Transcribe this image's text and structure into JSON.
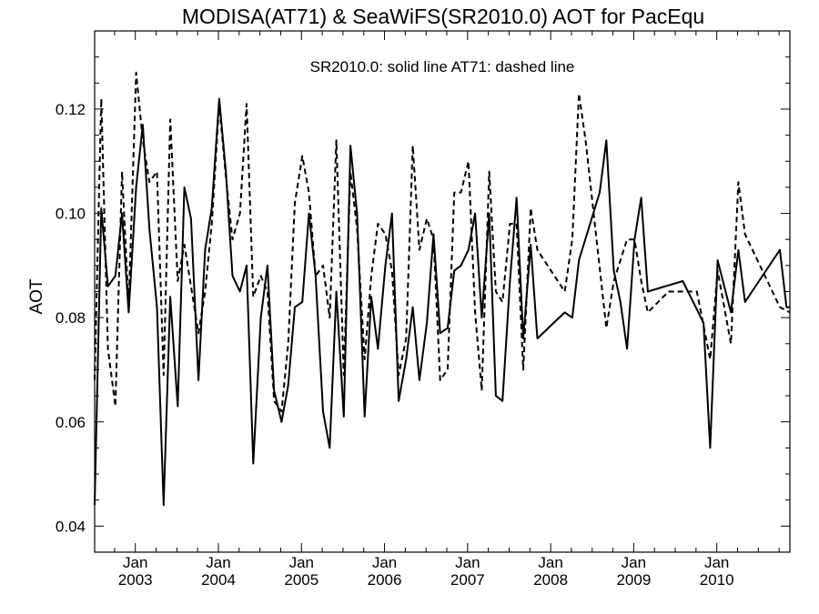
{
  "chart_data": {
    "type": "line",
    "title": "MODISA(AT71) & SeaWiFS(SR2010.0)  AOT for PacEqu",
    "annotation": "SR2010.0: solid line   AT71: dashed line",
    "xlabel": "",
    "ylabel": "AOT",
    "xlim": [
      2002.51,
      2010.88
    ],
    "ylim": [
      0.035,
      0.135
    ],
    "yticks": [
      0.04,
      0.06,
      0.08,
      0.1,
      0.12
    ],
    "ytick_labels": [
      "0.04",
      "0.06",
      "0.08",
      "0.10",
      "0.12"
    ],
    "xticks": [
      {
        "year": 2003,
        "top": "Jan",
        "bottom": "2003"
      },
      {
        "year": 2004,
        "top": "Jan",
        "bottom": "2004"
      },
      {
        "year": 2005,
        "top": "Jan",
        "bottom": "2005"
      },
      {
        "year": 2006,
        "top": "Jan",
        "bottom": "2006"
      },
      {
        "year": 2007,
        "top": "Jan",
        "bottom": "2007"
      },
      {
        "year": 2008,
        "top": "Jan",
        "bottom": "2008"
      },
      {
        "year": 2009,
        "top": "Jan",
        "bottom": "2009"
      },
      {
        "year": 2010,
        "top": "Jan",
        "bottom": "2010"
      }
    ],
    "grid": false,
    "series": [
      {
        "name": "SR2010.0",
        "style": "solid",
        "color": "#000000",
        "points": [
          [
            2002.51,
            0.044
          ],
          [
            2002.59,
            0.101
          ],
          [
            2002.67,
            0.086
          ],
          [
            2002.76,
            0.088
          ],
          [
            2002.84,
            0.1
          ],
          [
            2002.92,
            0.081
          ],
          [
            2003.01,
            0.105
          ],
          [
            2003.09,
            0.117
          ],
          [
            2003.17,
            0.097
          ],
          [
            2003.26,
            0.082
          ],
          [
            2003.34,
            0.044
          ],
          [
            2003.42,
            0.084
          ],
          [
            2003.51,
            0.063
          ],
          [
            2003.59,
            0.105
          ],
          [
            2003.67,
            0.099
          ],
          [
            2003.76,
            0.068
          ],
          [
            2003.84,
            0.093
          ],
          [
            2003.92,
            0.101
          ],
          [
            2004.01,
            0.122
          ],
          [
            2004.09,
            0.108
          ],
          [
            2004.17,
            0.088
          ],
          [
            2004.26,
            0.085
          ],
          [
            2004.34,
            0.09
          ],
          [
            2004.42,
            0.052
          ],
          [
            2004.51,
            0.08
          ],
          [
            2004.59,
            0.09
          ],
          [
            2004.67,
            0.066
          ],
          [
            2004.76,
            0.06
          ],
          [
            2004.84,
            0.067
          ],
          [
            2004.92,
            0.082
          ],
          [
            2005.01,
            0.083
          ],
          [
            2005.09,
            0.1
          ],
          [
            2005.17,
            0.088
          ],
          [
            2005.26,
            0.062
          ],
          [
            2005.34,
            0.055
          ],
          [
            2005.42,
            0.085
          ],
          [
            2005.51,
            0.061
          ],
          [
            2005.59,
            0.113
          ],
          [
            2005.67,
            0.1
          ],
          [
            2005.76,
            0.061
          ],
          [
            2005.84,
            0.084
          ],
          [
            2005.92,
            0.074
          ],
          [
            2006.01,
            0.09
          ],
          [
            2006.09,
            0.1
          ],
          [
            2006.17,
            0.064
          ],
          [
            2006.26,
            0.072
          ],
          [
            2006.34,
            0.082
          ],
          [
            2006.42,
            0.068
          ],
          [
            2006.51,
            0.079
          ],
          [
            2006.59,
            0.096
          ],
          [
            2006.67,
            0.077
          ],
          [
            2006.76,
            0.078
          ],
          [
            2006.84,
            0.089
          ],
          [
            2006.92,
            0.09
          ],
          [
            2007.01,
            0.093
          ],
          [
            2007.09,
            0.1
          ],
          [
            2007.17,
            0.08
          ],
          [
            2007.26,
            0.1
          ],
          [
            2007.34,
            0.065
          ],
          [
            2007.42,
            0.064
          ],
          [
            2007.51,
            0.087
          ],
          [
            2007.59,
            0.103
          ],
          [
            2007.67,
            0.076
          ],
          [
            2007.76,
            0.094
          ],
          [
            2007.84,
            0.076
          ],
          [
            2008.17,
            0.081
          ],
          [
            2008.26,
            0.08
          ],
          [
            2008.34,
            0.091
          ],
          [
            2008.59,
            0.104
          ],
          [
            2008.67,
            0.114
          ],
          [
            2008.76,
            0.089
          ],
          [
            2008.84,
            0.083
          ],
          [
            2008.92,
            0.074
          ],
          [
            2009.01,
            0.095
          ],
          [
            2009.09,
            0.103
          ],
          [
            2009.17,
            0.085
          ],
          [
            2009.59,
            0.087
          ],
          [
            2009.84,
            0.079
          ],
          [
            2009.92,
            0.055
          ],
          [
            2010.01,
            0.091
          ],
          [
            2010.17,
            0.081
          ],
          [
            2010.26,
            0.093
          ],
          [
            2010.34,
            0.083
          ],
          [
            2010.76,
            0.093
          ],
          [
            2010.84,
            0.082
          ],
          [
            2010.88,
            0.082
          ]
        ]
      },
      {
        "name": "AT71",
        "style": "dashed",
        "color": "#000000",
        "points": [
          [
            2002.51,
            0.068
          ],
          [
            2002.59,
            0.122
          ],
          [
            2002.67,
            0.074
          ],
          [
            2002.76,
            0.063
          ],
          [
            2002.84,
            0.108
          ],
          [
            2002.92,
            0.082
          ],
          [
            2003.01,
            0.127
          ],
          [
            2003.09,
            0.114
          ],
          [
            2003.17,
            0.106
          ],
          [
            2003.26,
            0.108
          ],
          [
            2003.34,
            0.069
          ],
          [
            2003.42,
            0.118
          ],
          [
            2003.51,
            0.087
          ],
          [
            2003.59,
            0.094
          ],
          [
            2003.67,
            0.086
          ],
          [
            2003.76,
            0.077
          ],
          [
            2003.84,
            0.085
          ],
          [
            2003.92,
            0.098
          ],
          [
            2004.01,
            0.121
          ],
          [
            2004.09,
            0.107
          ],
          [
            2004.17,
            0.095
          ],
          [
            2004.26,
            0.1
          ],
          [
            2004.34,
            0.121
          ],
          [
            2004.42,
            0.084
          ],
          [
            2004.51,
            0.088
          ],
          [
            2004.59,
            0.085
          ],
          [
            2004.67,
            0.064
          ],
          [
            2004.76,
            0.062
          ],
          [
            2004.84,
            0.075
          ],
          [
            2004.92,
            0.102
          ],
          [
            2005.01,
            0.111
          ],
          [
            2005.09,
            0.104
          ],
          [
            2005.17,
            0.088
          ],
          [
            2005.26,
            0.09
          ],
          [
            2005.34,
            0.08
          ],
          [
            2005.42,
            0.114
          ],
          [
            2005.51,
            0.069
          ],
          [
            2005.59,
            0.108
          ],
          [
            2005.67,
            0.097
          ],
          [
            2005.76,
            0.072
          ],
          [
            2005.84,
            0.088
          ],
          [
            2005.92,
            0.098
          ],
          [
            2006.01,
            0.096
          ],
          [
            2006.09,
            0.089
          ],
          [
            2006.17,
            0.069
          ],
          [
            2006.26,
            0.076
          ],
          [
            2006.34,
            0.113
          ],
          [
            2006.42,
            0.093
          ],
          [
            2006.51,
            0.099
          ],
          [
            2006.59,
            0.095
          ],
          [
            2006.67,
            0.068
          ],
          [
            2006.76,
            0.07
          ],
          [
            2006.84,
            0.104
          ],
          [
            2006.92,
            0.104
          ],
          [
            2007.01,
            0.11
          ],
          [
            2007.09,
            0.081
          ],
          [
            2007.17,
            0.066
          ],
          [
            2007.26,
            0.108
          ],
          [
            2007.34,
            0.085
          ],
          [
            2007.42,
            0.083
          ],
          [
            2007.51,
            0.098
          ],
          [
            2007.59,
            0.098
          ],
          [
            2007.67,
            0.07
          ],
          [
            2007.76,
            0.101
          ],
          [
            2007.84,
            0.093
          ],
          [
            2008.17,
            0.085
          ],
          [
            2008.26,
            0.095
          ],
          [
            2008.34,
            0.123
          ],
          [
            2008.42,
            0.114
          ],
          [
            2008.67,
            0.078
          ],
          [
            2008.76,
            0.087
          ],
          [
            2008.92,
            0.095
          ],
          [
            2009.01,
            0.095
          ],
          [
            2009.09,
            0.087
          ],
          [
            2009.17,
            0.081
          ],
          [
            2009.42,
            0.085
          ],
          [
            2009.67,
            0.085
          ],
          [
            2009.76,
            0.085
          ],
          [
            2009.92,
            0.072
          ],
          [
            2010.01,
            0.089
          ],
          [
            2010.17,
            0.075
          ],
          [
            2010.26,
            0.106
          ],
          [
            2010.34,
            0.096
          ],
          [
            2010.67,
            0.085
          ],
          [
            2010.76,
            0.082
          ],
          [
            2010.88,
            0.081
          ]
        ]
      }
    ]
  }
}
